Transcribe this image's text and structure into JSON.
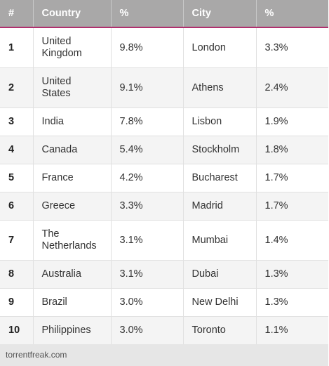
{
  "table": {
    "headers": [
      "#",
      "Country",
      "%",
      "City",
      "%"
    ],
    "rows": [
      {
        "rank": "1",
        "country": "United Kingdom",
        "country_pct": "9.8%",
        "city": "London",
        "city_pct": "3.3%"
      },
      {
        "rank": "2",
        "country": "United States",
        "country_pct": "9.1%",
        "city": "Athens",
        "city_pct": "2.4%"
      },
      {
        "rank": "3",
        "country": "India",
        "country_pct": "7.8%",
        "city": "Lisbon",
        "city_pct": "1.9%"
      },
      {
        "rank": "4",
        "country": "Canada",
        "country_pct": "5.4%",
        "city": "Stockholm",
        "city_pct": "1.8%"
      },
      {
        "rank": "5",
        "country": "France",
        "country_pct": "4.2%",
        "city": "Bucharest",
        "city_pct": "1.7%"
      },
      {
        "rank": "6",
        "country": "Greece",
        "country_pct": "3.3%",
        "city": "Madrid",
        "city_pct": "1.7%"
      },
      {
        "rank": "7",
        "country": "The Netherlands",
        "country_pct": "3.1%",
        "city": "Mumbai",
        "city_pct": "1.4%"
      },
      {
        "rank": "8",
        "country": "Australia",
        "country_pct": "3.1%",
        "city": "Dubai",
        "city_pct": "1.3%"
      },
      {
        "rank": "9",
        "country": "Brazil",
        "country_pct": "3.0%",
        "city": "New Delhi",
        "city_pct": "1.3%"
      },
      {
        "rank": "10",
        "country": "Philippines",
        "country_pct": "3.0%",
        "city": "Toronto",
        "city_pct": "1.1%"
      }
    ]
  },
  "footer": {
    "source": "torrentfreak.com"
  },
  "colors": {
    "header_bg": "#a9a8a8",
    "header_rule": "#b0306e",
    "stripe": "#f4f4f4",
    "footer_bg": "#e6e6e6"
  }
}
